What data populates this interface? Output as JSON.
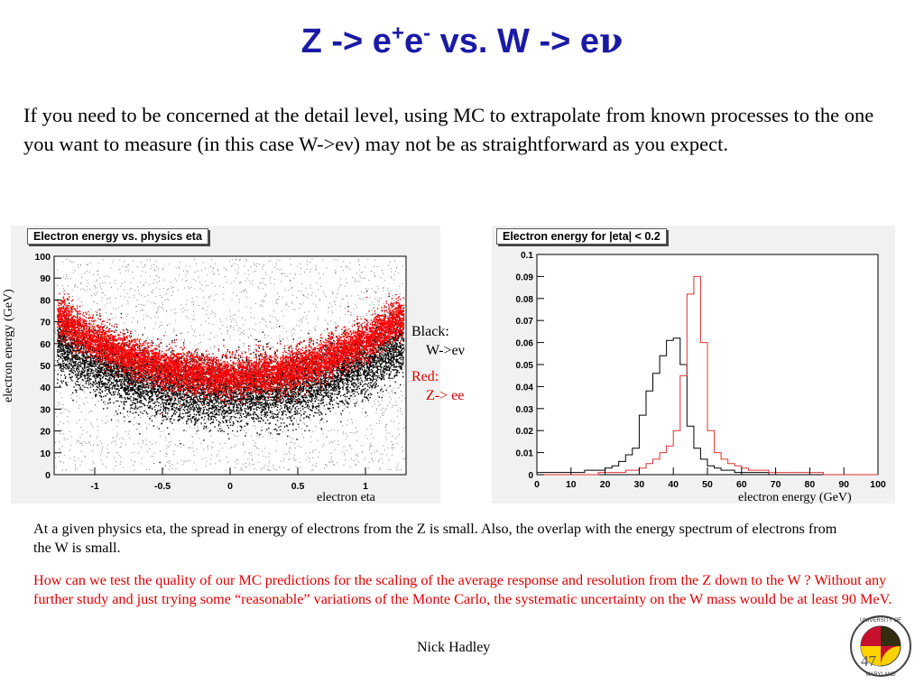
{
  "slide": {
    "title_parts": {
      "a": "Z -> e",
      "b": "+",
      "c": "e",
      "d": "-",
      "e": " vs. W -> e",
      "f": "ν"
    },
    "intro": "If you need to be concerned at the detail level, using MC to extrapolate from known processes to the one you want to measure (in this case W->eν) may not be as straightforward as you expect.",
    "legend": {
      "black_head": "Black:",
      "black_item": "W->eν",
      "red_head": "Red:",
      "red_item": "Z-> ee"
    },
    "para1": "At a given physics eta, the spread in energy of electrons from the Z is small. Also, the overlap with the energy spectrum of electrons from the W is small.",
    "para2": "How can we test the quality of our MC predictions for the scaling of the average response and resolution from the Z down to the W ? Without any further study and just trying some “reasonable” variations of the Monte Carlo, the systematic uncertainty on the W mass would be at least 90 MeV.",
    "footer": "Nick Hadley",
    "page_number": "47",
    "logo_text": "UNIVERSITY OF MARYLAND",
    "colors": {
      "title": "#1a1aa6",
      "red_text": "#e00000",
      "w_series": "#000000",
      "z_series": "#e03030"
    }
  },
  "chart_data": [
    {
      "type": "scatter",
      "title": "Electron energy vs. physics eta",
      "xlabel": "electron eta",
      "ylabel": "electron energy (GeV)",
      "xlim": [
        -1.3,
        1.3
      ],
      "ylim": [
        0,
        100
      ],
      "x_ticks": [
        -1,
        -0.5,
        0,
        0.5,
        1
      ],
      "y_ticks": [
        0,
        10,
        20,
        30,
        40,
        50,
        60,
        70,
        80,
        90,
        100
      ],
      "series": [
        {
          "name": "W->eν",
          "color": "#000000",
          "band_center_eta0": 38,
          "band_center_eta1": 52
        },
        {
          "name": "Z-> ee",
          "color": "#ff0000",
          "band_center_eta0": 45,
          "band_center_eta1": 62
        }
      ]
    },
    {
      "type": "line",
      "title": "Electron energy for |eta| < 0.2",
      "xlabel": "electron energy (GeV)",
      "ylabel": "",
      "xlim": [
        0,
        100
      ],
      "ylim": [
        0,
        0.1
      ],
      "x_ticks": [
        0,
        10,
        20,
        30,
        40,
        50,
        60,
        70,
        80,
        90,
        100
      ],
      "y_ticks": [
        0,
        0.01,
        0.02,
        0.03,
        0.04,
        0.05,
        0.06,
        0.07,
        0.08,
        0.09,
        0.1
      ],
      "x": [
        0,
        2,
        4,
        6,
        8,
        10,
        12,
        14,
        16,
        18,
        20,
        22,
        24,
        26,
        28,
        30,
        32,
        34,
        36,
        38,
        40,
        42,
        44,
        46,
        48,
        50,
        52,
        54,
        56,
        58,
        60,
        62,
        64,
        66,
        68,
        70,
        72,
        74,
        76,
        78,
        80,
        82,
        84,
        86,
        88,
        90,
        92,
        94,
        96,
        98
      ],
      "series": [
        {
          "name": "W->eν",
          "color": "#000000",
          "values": [
            0.001,
            0.001,
            0.001,
            0.001,
            0.001,
            0.001,
            0.001,
            0.002,
            0.002,
            0.002,
            0.003,
            0.004,
            0.006,
            0.009,
            0.012,
            0.027,
            0.038,
            0.046,
            0.054,
            0.061,
            0.062,
            0.05,
            0.022,
            0.012,
            0.007,
            0.004,
            0.003,
            0.002,
            0.002,
            0.001,
            0.001,
            0.001,
            0.001,
            0.001,
            0.0,
            0.0,
            0.0,
            0.0,
            0.0,
            0.0,
            0.0,
            0.0,
            0.0,
            0.0,
            0.0,
            0.0,
            0.0,
            0.0,
            0.0,
            0.0
          ]
        },
        {
          "name": "Z-> ee",
          "color": "#e03030",
          "values": [
            0.0,
            0.0,
            0.0,
            0.0,
            0.0,
            0.0,
            0.0,
            0.0,
            0.0,
            0.001,
            0.001,
            0.001,
            0.001,
            0.002,
            0.002,
            0.003,
            0.005,
            0.007,
            0.01,
            0.013,
            0.02,
            0.045,
            0.082,
            0.09,
            0.06,
            0.02,
            0.01,
            0.007,
            0.005,
            0.004,
            0.003,
            0.002,
            0.002,
            0.002,
            0.001,
            0.001,
            0.001,
            0.001,
            0.001,
            0.001,
            0.001,
            0.001,
            0.0,
            0.0,
            0.0,
            0.0,
            0.0,
            0.0,
            0.0,
            0.0
          ]
        }
      ]
    }
  ]
}
